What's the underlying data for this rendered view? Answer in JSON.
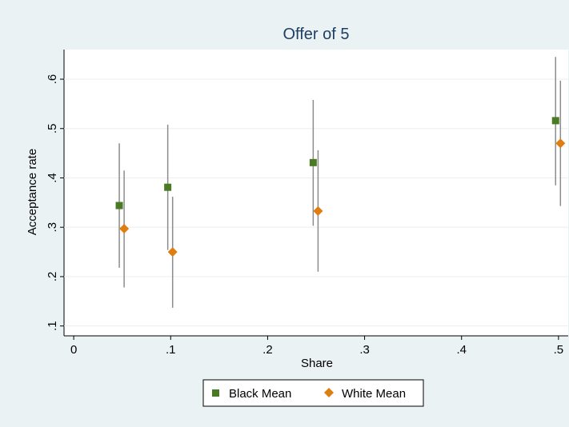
{
  "chart_data": {
    "type": "scatter",
    "title": "Offer of 5",
    "xlabel": "Share",
    "ylabel": "Acceptance rate",
    "xlim": [
      -0.01,
      0.51
    ],
    "ylim": [
      0.08,
      0.66
    ],
    "x_ticks": [
      0,
      0.1,
      0.2,
      0.3,
      0.4,
      0.5
    ],
    "x_tick_labels": [
      "0",
      ".1",
      ".2",
      ".3",
      ".4",
      ".5"
    ],
    "y_ticks": [
      0.1,
      0.2,
      0.3,
      0.4,
      0.5,
      0.6
    ],
    "y_tick_labels": [
      ".1",
      ".2",
      ".3",
      ".4",
      ".5",
      ".6"
    ],
    "grid": true,
    "legend_position": "bottom",
    "series": [
      {
        "name": "Black Mean",
        "color": "#4a7a24",
        "marker": "square",
        "x": [
          0.047,
          0.097,
          0.247,
          0.497
        ],
        "y": [
          0.344,
          0.381,
          0.431,
          0.516
        ],
        "ci_low": [
          0.218,
          0.254,
          0.303,
          0.385
        ],
        "ci_high": [
          0.47,
          0.508,
          0.558,
          0.645
        ]
      },
      {
        "name": "White Mean",
        "color": "#e07d10",
        "marker": "diamond",
        "x": [
          0.052,
          0.102,
          0.252,
          0.502
        ],
        "y": [
          0.297,
          0.25,
          0.333,
          0.47
        ],
        "ci_low": [
          0.178,
          0.137,
          0.21,
          0.343
        ],
        "ci_high": [
          0.415,
          0.362,
          0.456,
          0.597
        ]
      }
    ],
    "errorbar_color": "#8c8c8c"
  }
}
